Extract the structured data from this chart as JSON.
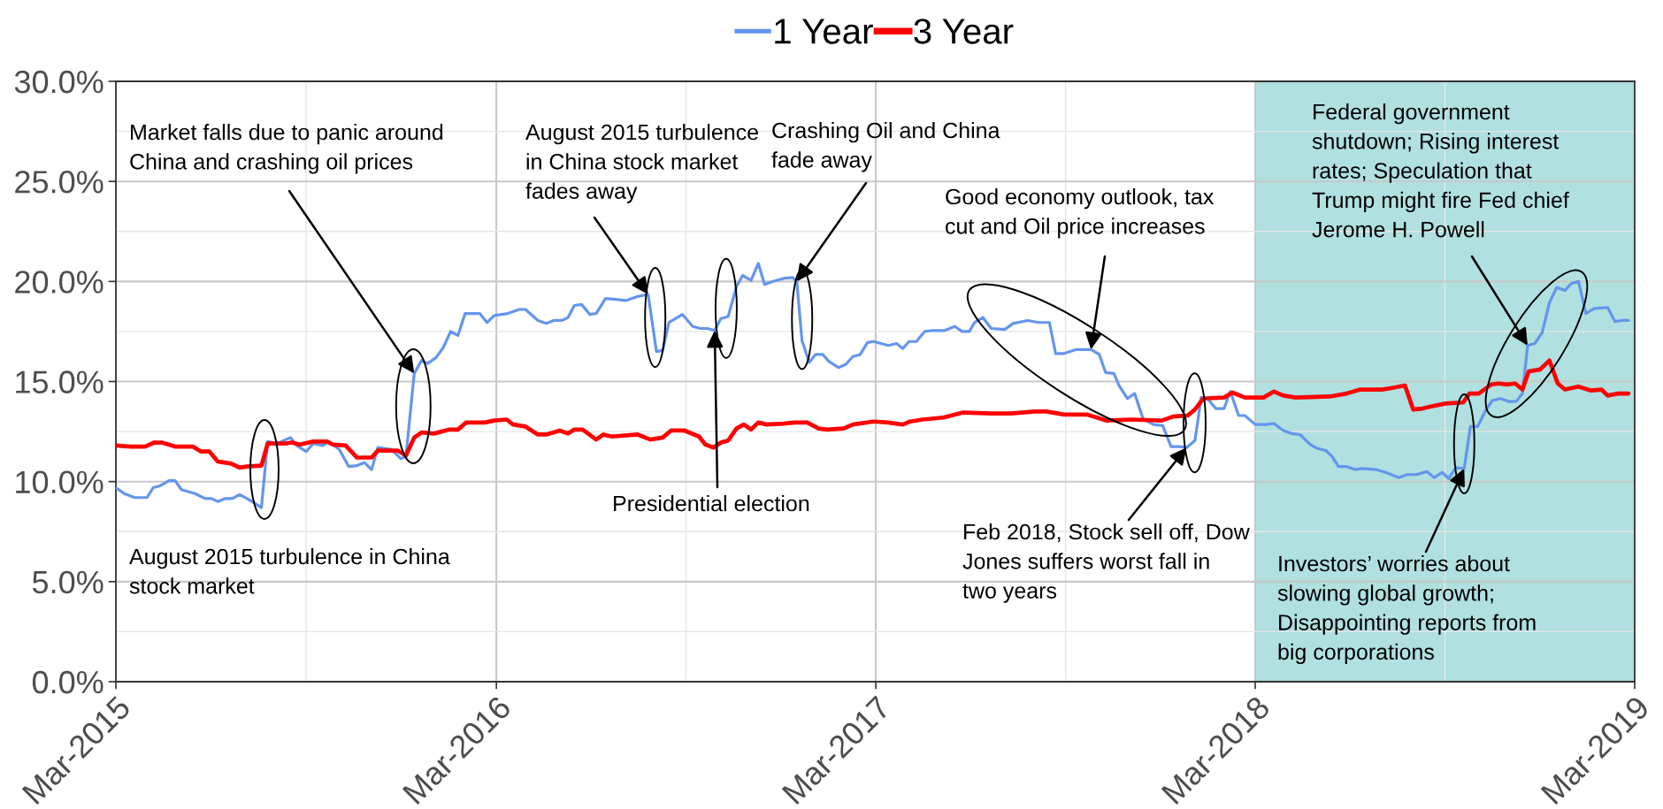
{
  "chart_data": {
    "type": "line",
    "legend": "top",
    "grid": true,
    "xlim": [
      "2015-03-01",
      "2019-03-01"
    ],
    "xticks": [
      {
        "value": "2015-03-01",
        "label": "Mar-2015"
      },
      {
        "value": "2016-03-01",
        "label": "Mar-2016"
      },
      {
        "value": "2017-03-01",
        "label": "Mar-2017"
      },
      {
        "value": "2018-03-01",
        "label": "Mar-2018"
      },
      {
        "value": "2019-03-01",
        "label": "Mar-2019"
      }
    ],
    "ylim": [
      0,
      30
    ],
    "yticks": [
      {
        "value": 0,
        "label": "0.0%"
      },
      {
        "value": 5,
        "label": "5.0%"
      },
      {
        "value": 10,
        "label": "10.0%"
      },
      {
        "value": 15,
        "label": "15.0%"
      },
      {
        "value": 20,
        "label": "20.0%"
      },
      {
        "value": 25,
        "label": "25.0%"
      },
      {
        "value": 30,
        "label": "30.0%"
      }
    ],
    "bands": [
      {
        "axis": "x",
        "from": "2018-03-01",
        "to": "2019-03-01",
        "color": "#b0e0e0"
      }
    ],
    "series": [
      {
        "name": "1 Year",
        "color": "#6495ed",
        "x": [
          "2015-03-01",
          "2015-03-09",
          "2015-03-19",
          "2015-03-31",
          "2015-04-06",
          "2015-04-13",
          "2015-04-21",
          "2015-04-27",
          "2015-05-03",
          "2015-05-16",
          "2015-05-26",
          "2015-06-01",
          "2015-06-07",
          "2015-06-14",
          "2015-06-21",
          "2015-06-28",
          "2015-07-07",
          "2015-07-19",
          "2015-07-25",
          "2015-08-03",
          "2015-08-16",
          "2015-08-22",
          "2015-08-31",
          "2015-09-07",
          "2015-09-16",
          "2015-09-22",
          "2015-10-02",
          "2015-10-11",
          "2015-10-19",
          "2015-10-26",
          "2015-11-02",
          "2015-11-08",
          "2015-11-21",
          "2015-11-30",
          "2015-12-05",
          "2015-12-13",
          "2015-12-20",
          "2015-12-26",
          "2016-01-03",
          "2016-01-10",
          "2016-01-17",
          "2016-01-24",
          "2016-01-31",
          "2016-02-14",
          "2016-02-21",
          "2016-02-28",
          "2016-03-12",
          "2016-03-23",
          "2016-03-29",
          "2016-04-10",
          "2016-04-18",
          "2016-04-25",
          "2016-05-03",
          "2016-05-09",
          "2016-05-15",
          "2016-05-22",
          "2016-05-30",
          "2016-06-05",
          "2016-06-14",
          "2016-06-24",
          "2016-07-04",
          "2016-07-15",
          "2016-07-25",
          "2016-08-02",
          "2016-08-08",
          "2016-08-14",
          "2016-08-27",
          "2016-09-06",
          "2016-09-13",
          "2016-09-20",
          "2016-09-27",
          "2016-10-03",
          "2016-10-10",
          "2016-10-18",
          "2016-10-24",
          "2016-11-01",
          "2016-11-08",
          "2016-11-14",
          "2016-11-22",
          "2016-12-02",
          "2016-12-11",
          "2016-12-15",
          "2016-12-20",
          "2016-12-27",
          "2017-01-02",
          "2017-01-09",
          "2017-01-15",
          "2017-01-24",
          "2017-01-31",
          "2017-02-07",
          "2017-02-14",
          "2017-02-21",
          "2017-02-27",
          "2017-03-13",
          "2017-03-21",
          "2017-03-27",
          "2017-04-02",
          "2017-04-09",
          "2017-04-17",
          "2017-04-25",
          "2017-05-06",
          "2017-05-16",
          "2017-05-23",
          "2017-05-30",
          "2017-06-04",
          "2017-06-12",
          "2017-06-20",
          "2017-07-03",
          "2017-07-11",
          "2017-07-25",
          "2017-08-05",
          "2017-08-15",
          "2017-08-21",
          "2017-08-29",
          "2017-09-10",
          "2017-09-24",
          "2017-10-02",
          "2017-10-08",
          "2017-10-16",
          "2017-10-21",
          "2017-10-29",
          "2017-11-05",
          "2017-11-13",
          "2017-11-23",
          "2017-12-02",
          "2017-12-10",
          "2017-12-18",
          "2017-12-25",
          "2018-01-02",
          "2018-01-08",
          "2018-01-14",
          "2018-01-22",
          "2018-01-30",
          "2018-02-05",
          "2018-02-13",
          "2018-02-19",
          "2018-03-01",
          "2018-03-11",
          "2018-03-19",
          "2018-03-28",
          "2018-04-05",
          "2018-04-13",
          "2018-04-23",
          "2018-04-30",
          "2018-05-08",
          "2018-05-14",
          "2018-05-20",
          "2018-05-28",
          "2018-06-05",
          "2018-06-12",
          "2018-06-25",
          "2018-07-05",
          "2018-07-17",
          "2018-07-25",
          "2018-08-03",
          "2018-08-13",
          "2018-08-20",
          "2018-08-28",
          "2018-09-03",
          "2018-09-10",
          "2018-09-18",
          "2018-09-24",
          "2018-10-01",
          "2018-10-08",
          "2018-10-15",
          "2018-10-23",
          "2018-10-31",
          "2018-11-07",
          "2018-11-13",
          "2018-11-18",
          "2018-11-25",
          "2018-12-02",
          "2018-12-09",
          "2018-12-16",
          "2018-12-24",
          "2018-12-30",
          "2019-01-06",
          "2019-01-13",
          "2019-01-21",
          "2019-02-03",
          "2019-02-10",
          "2019-02-17",
          "2019-02-23"
        ],
        "values": [
          9.7,
          9.4,
          9.2,
          9.2,
          9.7,
          9.8,
          10.05,
          10.05,
          9.6,
          9.4,
          9.15,
          9.15,
          9.0,
          9.15,
          9.15,
          9.35,
          9.1,
          8.7,
          12.0,
          11.9,
          12.2,
          11.8,
          11.5,
          11.9,
          11.8,
          12.0,
          11.6,
          10.75,
          10.8,
          10.95,
          10.6,
          11.7,
          11.6,
          11.15,
          11.25,
          15.4,
          16.05,
          15.9,
          16.2,
          16.7,
          17.5,
          17.3,
          18.4,
          18.4,
          17.95,
          18.3,
          18.4,
          18.6,
          18.6,
          18.05,
          17.9,
          18.05,
          18.05,
          18.2,
          18.8,
          18.85,
          18.35,
          18.4,
          19.15,
          19.1,
          19.05,
          19.25,
          19.35,
          16.5,
          16.55,
          17.95,
          18.35,
          17.75,
          17.65,
          17.65,
          17.55,
          18.15,
          18.25,
          19.75,
          20.3,
          20.05,
          20.9,
          19.85,
          20.0,
          20.15,
          20.2,
          20.0,
          17.05,
          15.95,
          16.35,
          16.35,
          16.0,
          15.7,
          15.85,
          16.25,
          16.35,
          16.95,
          17.0,
          16.8,
          16.9,
          16.65,
          17.0,
          17.0,
          17.5,
          17.55,
          17.55,
          17.75,
          17.5,
          17.5,
          17.95,
          18.2,
          17.65,
          17.6,
          17.9,
          18.05,
          17.95,
          17.95,
          16.4,
          16.4,
          16.6,
          16.6,
          16.35,
          15.45,
          15.4,
          14.8,
          14.15,
          14.4,
          13.15,
          12.85,
          12.8,
          11.75,
          11.75,
          11.7,
          12.05,
          14.2,
          14.15,
          13.65,
          13.65,
          14.5,
          13.3,
          13.3,
          12.85,
          12.85,
          12.9,
          12.55,
          12.4,
          12.35,
          11.85,
          11.65,
          11.55,
          11.25,
          10.75,
          10.75,
          10.6,
          10.65,
          10.6,
          10.45,
          10.2,
          10.35,
          10.35,
          10.5,
          10.2,
          10.45,
          10.15,
          10.7,
          10.65,
          12.75,
          12.75,
          13.5,
          14.05,
          14.15,
          14.0,
          14.0,
          14.4,
          16.8,
          16.9,
          17.45,
          18.95,
          19.7,
          19.55,
          19.9,
          20.0,
          18.4,
          18.65,
          18.7,
          18.0,
          18.05,
          18.05
        ]
      },
      {
        "name": "3 Year",
        "color": "#ff0000",
        "x": [
          "2015-03-01",
          "2015-03-15",
          "2015-03-29",
          "2015-04-07",
          "2015-04-14",
          "2015-04-27",
          "2015-05-14",
          "2015-05-22",
          "2015-05-30",
          "2015-06-07",
          "2015-06-20",
          "2015-06-28",
          "2015-07-05",
          "2015-07-19",
          "2015-07-25",
          "2015-08-11",
          "2015-08-17",
          "2015-08-25",
          "2015-09-07",
          "2015-09-20",
          "2015-09-26",
          "2015-10-08",
          "2015-10-19",
          "2015-11-02",
          "2015-11-08",
          "2015-11-27",
          "2015-12-05",
          "2015-12-13",
          "2015-12-20",
          "2016-01-01",
          "2016-01-16",
          "2016-01-24",
          "2016-02-01",
          "2016-02-19",
          "2016-02-28",
          "2016-03-11",
          "2016-03-17",
          "2016-03-29",
          "2016-04-10",
          "2016-04-18",
          "2016-05-01",
          "2016-05-09",
          "2016-05-15",
          "2016-05-23",
          "2016-06-05",
          "2016-06-12",
          "2016-06-20",
          "2016-07-02",
          "2016-07-15",
          "2016-07-27",
          "2016-08-08",
          "2016-08-16",
          "2016-08-29",
          "2016-09-12",
          "2016-09-18",
          "2016-09-26",
          "2016-10-03",
          "2016-10-10",
          "2016-10-18",
          "2016-10-25",
          "2016-11-01",
          "2016-11-08",
          "2016-11-16",
          "2016-12-02",
          "2016-12-13",
          "2016-12-25",
          "2017-01-05",
          "2017-01-13",
          "2017-01-29",
          "2017-02-07",
          "2017-02-27",
          "2017-03-13",
          "2017-03-27",
          "2017-04-03",
          "2017-04-15",
          "2017-05-05",
          "2017-05-24",
          "2017-06-20",
          "2017-07-09",
          "2017-08-01",
          "2017-08-12",
          "2017-08-29",
          "2017-09-20",
          "2017-10-09",
          "2017-11-02",
          "2017-12-01",
          "2017-12-12",
          "2017-12-26",
          "2018-01-02",
          "2018-01-10",
          "2018-01-30",
          "2018-02-07",
          "2018-02-19",
          "2018-03-01",
          "2018-03-09",
          "2018-03-19",
          "2018-03-28",
          "2018-04-09",
          "2018-05-12",
          "2018-05-28",
          "2018-06-10",
          "2018-07-01",
          "2018-07-13",
          "2018-07-23",
          "2018-07-31",
          "2018-08-09",
          "2018-08-17",
          "2018-08-31",
          "2018-09-17",
          "2018-09-23",
          "2018-10-02",
          "2018-10-14",
          "2018-10-21",
          "2018-10-29",
          "2018-11-06",
          "2018-11-13",
          "2018-11-19",
          "2018-11-30",
          "2018-12-09",
          "2018-12-17",
          "2018-12-24",
          "2019-01-06",
          "2019-01-18",
          "2019-01-28",
          "2019-02-03",
          "2019-02-13",
          "2019-02-23"
        ],
        "values": [
          11.8,
          11.75,
          11.75,
          11.95,
          11.95,
          11.75,
          11.75,
          11.5,
          11.5,
          11.0,
          10.9,
          10.7,
          10.75,
          10.8,
          11.9,
          11.9,
          11.95,
          11.85,
          12.0,
          12.0,
          11.85,
          11.8,
          11.2,
          11.2,
          11.55,
          11.55,
          11.3,
          12.2,
          12.45,
          12.4,
          12.6,
          12.6,
          12.95,
          12.95,
          13.05,
          13.1,
          12.85,
          12.75,
          12.35,
          12.35,
          12.55,
          12.4,
          12.6,
          12.6,
          12.1,
          12.35,
          12.25,
          12.3,
          12.35,
          12.1,
          12.2,
          12.55,
          12.55,
          12.25,
          11.85,
          11.7,
          11.95,
          12.05,
          12.65,
          12.85,
          12.6,
          12.95,
          12.85,
          12.9,
          12.95,
          12.95,
          12.65,
          12.6,
          12.65,
          12.85,
          13.0,
          12.95,
          12.85,
          13.0,
          13.1,
          13.2,
          13.45,
          13.4,
          13.4,
          13.5,
          13.5,
          13.35,
          13.35,
          13.05,
          13.1,
          13.05,
          13.25,
          13.3,
          13.6,
          14.15,
          14.2,
          14.45,
          14.2,
          14.2,
          14.2,
          14.5,
          14.3,
          14.2,
          14.25,
          14.4,
          14.6,
          14.6,
          14.7,
          14.8,
          13.6,
          13.65,
          13.75,
          13.9,
          13.95,
          14.4,
          14.4,
          14.85,
          14.9,
          14.85,
          14.9,
          14.6,
          15.5,
          15.6,
          16.05,
          14.9,
          14.6,
          14.75,
          14.55,
          14.6,
          14.3,
          14.4,
          14.4
        ]
      }
    ],
    "annotations": [
      "August 2015 turbulence in China\nstock market",
      {
        "text": "Market falls due to panic around\nChina and crashing oil prices",
        "x": "2015-12-13",
        "y": 15.4
      },
      {
        "text": "August 2015 turbulence\nin China stock market\nfades away",
        "x": "2016-07-25",
        "y": 19.35
      },
      {
        "text": "Presidential election",
        "x": "2016-09-27",
        "y": 17.55
      },
      {
        "text": "Crashing Oil and China\nfade away",
        "x": "2016-12-15",
        "y": 20.0
      },
      {
        "text": "Good economy outlook, tax\ncut and Oil price increases",
        "x": "2017-09-24",
        "y": 16.6
      },
      {
        "text": "Feb 2018, Stock sell off, Dow\nJones suffers worst fall in\ntwo years",
        "x": "2017-12-25",
        "y": 11.7
      },
      {
        "text": "Investors’ worries about\nslowing global growth;\nDisappointing reports from\nbig corporations",
        "x": "2018-09-18",
        "y": 10.65
      },
      {
        "text": "Federal government\nshutdown; Rising interest\nrates; Speculation that\nTrump might fire Fed chief\nJerome H. Powell",
        "x": "2018-11-18",
        "y": 16.8
      }
    ]
  }
}
